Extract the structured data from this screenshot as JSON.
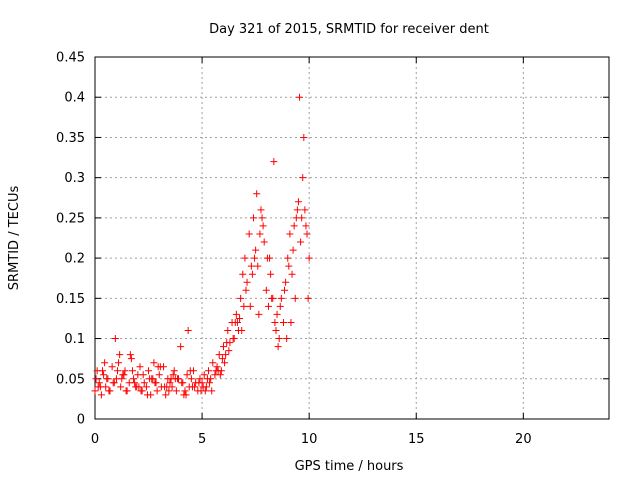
{
  "chart_data": {
    "type": "scatter",
    "title": "Day 321 of 2015, SRMTID for receiver dent",
    "xlabel": "GPS time / hours",
    "ylabel": "SRMTID / TECUs",
    "xlim": [
      0,
      24
    ],
    "ylim": [
      0,
      0.45
    ],
    "grid": true,
    "marker": "+",
    "color": "#ff0000",
    "x_ticks": [
      0,
      5,
      10,
      15,
      20
    ],
    "x_tick_labels": [
      "0",
      "5",
      "10",
      "15",
      "20"
    ],
    "y_ticks": [
      0,
      0.05,
      0.1,
      0.15,
      0.2,
      0.25,
      0.3,
      0.35,
      0.4,
      0.45
    ],
    "y_tick_labels": [
      "0",
      "0.05",
      "0.1",
      "0.15",
      "0.2",
      "0.25",
      "0.3",
      "0.35",
      "0.4",
      "0.45"
    ],
    "series": [
      {
        "name": "SRMTID",
        "x": [
          0.0,
          0.1,
          0.2,
          0.3,
          0.4,
          0.5,
          0.6,
          0.7,
          0.8,
          0.9,
          1.0,
          1.1,
          1.2,
          1.3,
          1.4,
          1.5,
          1.6,
          1.7,
          1.8,
          1.9,
          2.0,
          2.1,
          2.2,
          2.3,
          2.4,
          2.5,
          2.6,
          2.7,
          2.8,
          2.9,
          3.0,
          3.1,
          3.2,
          3.3,
          3.4,
          3.5,
          3.6,
          3.7,
          3.8,
          3.9,
          4.0,
          4.1,
          4.2,
          4.3,
          4.4,
          4.5,
          4.6,
          4.7,
          4.8,
          4.9,
          5.0,
          5.1,
          5.2,
          5.3,
          5.4,
          5.5,
          5.6,
          5.7,
          5.8,
          5.9,
          6.0,
          6.1,
          6.2,
          6.3,
          6.4,
          6.5,
          6.6,
          6.7,
          6.8,
          6.9,
          7.0,
          7.1,
          7.2,
          7.3,
          7.4,
          7.5,
          7.6,
          7.7,
          7.8,
          7.9,
          8.0,
          8.1,
          8.2,
          8.3,
          8.4,
          8.5,
          8.6,
          8.7,
          8.8,
          8.9,
          9.0,
          9.1,
          9.2,
          9.3,
          9.4,
          9.5,
          9.6,
          9.7,
          9.8,
          9.9,
          10.0,
          0.05,
          0.25,
          0.45,
          0.65,
          0.85,
          1.05,
          1.25,
          1.45,
          1.65,
          1.85,
          2.05,
          2.25,
          2.45,
          2.65,
          2.85,
          3.05,
          3.25,
          3.45,
          3.65,
          3.85,
          4.05,
          4.25,
          4.45,
          4.65,
          4.85,
          5.05,
          5.25,
          5.45,
          5.65,
          5.85,
          6.05,
          6.25,
          6.45,
          6.65,
          6.85,
          7.05,
          7.25,
          7.45,
          7.65,
          7.85,
          8.05,
          8.25,
          8.45,
          8.65,
          8.85,
          9.05,
          9.25,
          9.45,
          9.65,
          9.85,
          0.15,
          0.55,
          0.95,
          1.35,
          1.75,
          2.15,
          2.55,
          2.95,
          3.35,
          3.75,
          4.15,
          4.55,
          4.95,
          5.35,
          5.75,
          6.15,
          6.55,
          6.95,
          7.35,
          7.75,
          8.15,
          8.55,
          8.95,
          9.35,
          9.75,
          0.35,
          1.15,
          1.95,
          2.75,
          3.55,
          4.35,
          5.15,
          5.95,
          6.75,
          7.55,
          8.35,
          9.15,
          9.55,
          9.95
        ],
        "y": [
          0.035,
          0.06,
          0.045,
          0.03,
          0.055,
          0.04,
          0.05,
          0.035,
          0.065,
          0.045,
          0.05,
          0.07,
          0.04,
          0.055,
          0.06,
          0.035,
          0.045,
          0.075,
          0.05,
          0.04,
          0.055,
          0.065,
          0.035,
          0.045,
          0.04,
          0.06,
          0.03,
          0.05,
          0.045,
          0.035,
          0.055,
          0.04,
          0.065,
          0.03,
          0.05,
          0.045,
          0.04,
          0.06,
          0.035,
          0.05,
          0.09,
          0.045,
          0.035,
          0.055,
          0.04,
          0.05,
          0.06,
          0.045,
          0.035,
          0.05,
          0.045,
          0.055,
          0.04,
          0.06,
          0.05,
          0.07,
          0.055,
          0.065,
          0.08,
          0.06,
          0.09,
          0.08,
          0.11,
          0.095,
          0.12,
          0.1,
          0.13,
          0.11,
          0.15,
          0.18,
          0.2,
          0.17,
          0.23,
          0.19,
          0.25,
          0.21,
          0.19,
          0.23,
          0.25,
          0.22,
          0.16,
          0.14,
          0.18,
          0.15,
          0.12,
          0.13,
          0.1,
          0.15,
          0.12,
          0.17,
          0.2,
          0.23,
          0.18,
          0.24,
          0.25,
          0.27,
          0.22,
          0.3,
          0.26,
          0.23,
          0.2,
          0.05,
          0.04,
          0.07,
          0.035,
          0.045,
          0.06,
          0.05,
          0.035,
          0.08,
          0.045,
          0.04,
          0.055,
          0.03,
          0.05,
          0.045,
          0.065,
          0.04,
          0.035,
          0.055,
          0.05,
          0.045,
          0.03,
          0.06,
          0.04,
          0.045,
          0.04,
          0.05,
          0.035,
          0.06,
          0.055,
          0.07,
          0.085,
          0.1,
          0.12,
          0.11,
          0.16,
          0.14,
          0.2,
          0.13,
          0.24,
          0.2,
          0.15,
          0.11,
          0.14,
          0.16,
          0.19,
          0.21,
          0.26,
          0.25,
          0.24,
          0.04,
          0.05,
          0.1,
          0.055,
          0.06,
          0.035,
          0.05,
          0.065,
          0.04,
          0.05,
          0.03,
          0.04,
          0.035,
          0.045,
          0.06,
          0.095,
          0.12,
          0.14,
          0.18,
          0.26,
          0.2,
          0.09,
          0.1,
          0.15,
          0.35,
          0.06,
          0.08,
          0.04,
          0.07,
          0.05,
          0.11,
          0.035,
          0.075,
          0.125,
          0.28,
          0.32,
          0.12,
          0.4,
          0.15
        ]
      }
    ]
  }
}
